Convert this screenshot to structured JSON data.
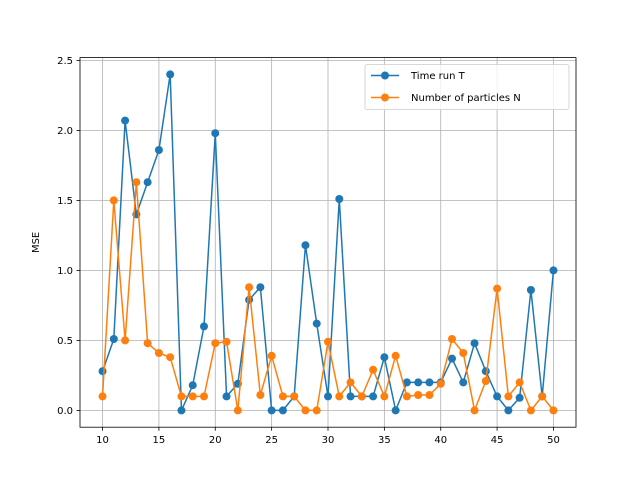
{
  "chart_data": {
    "type": "line",
    "title": "",
    "xlabel": "",
    "ylabel": "MSE",
    "xlim": [
      8.0,
      52.0
    ],
    "ylim": [
      -0.12,
      2.52
    ],
    "xticks": [
      10,
      15,
      20,
      25,
      30,
      35,
      40,
      45,
      50
    ],
    "xtick_labels": [
      "10",
      "15",
      "20",
      "25",
      "30",
      "35",
      "40",
      "45",
      "50"
    ],
    "yticks": [
      0.0,
      0.5,
      1.0,
      1.5,
      2.0,
      2.5
    ],
    "ytick_labels": [
      "0.0",
      "0.5",
      "1.0",
      "1.5",
      "2.0",
      "2.5"
    ],
    "grid": true,
    "legend_position": "top-right",
    "x": [
      10,
      11,
      12,
      13,
      14,
      15,
      16,
      17,
      18,
      19,
      20,
      21,
      22,
      23,
      24,
      25,
      26,
      27,
      28,
      29,
      30,
      31,
      32,
      33,
      34,
      35,
      36,
      37,
      38,
      39,
      40,
      41,
      42,
      43,
      44,
      45,
      46,
      47,
      48,
      49,
      50
    ],
    "series": [
      {
        "name": "Time run T",
        "color": "#1f77b4",
        "values": [
          0.28,
          0.51,
          2.07,
          1.4,
          1.63,
          1.86,
          2.4,
          0.0,
          0.18,
          0.6,
          1.98,
          0.1,
          0.19,
          0.79,
          0.88,
          0.0,
          0.0,
          0.1,
          1.18,
          0.62,
          0.1,
          1.51,
          0.1,
          0.1,
          0.1,
          0.38,
          0.0,
          0.2,
          0.2,
          0.2,
          0.2,
          0.37,
          0.2,
          0.48,
          0.28,
          0.1,
          0.0,
          0.09,
          0.86,
          0.1,
          1.0
        ]
      },
      {
        "name": "Number of particles N",
        "color": "#ff7f0e",
        "values": [
          0.1,
          1.5,
          0.5,
          1.63,
          0.48,
          0.41,
          0.38,
          0.1,
          0.1,
          0.1,
          0.48,
          0.49,
          0.0,
          0.88,
          0.11,
          0.39,
          0.1,
          0.1,
          0.0,
          0.0,
          0.49,
          0.1,
          0.2,
          0.1,
          0.29,
          0.1,
          0.39,
          0.1,
          0.11,
          0.11,
          0.19,
          0.51,
          0.41,
          0.0,
          0.21,
          0.87,
          0.1,
          0.2,
          0.0,
          0.1,
          0.0
        ]
      }
    ]
  }
}
